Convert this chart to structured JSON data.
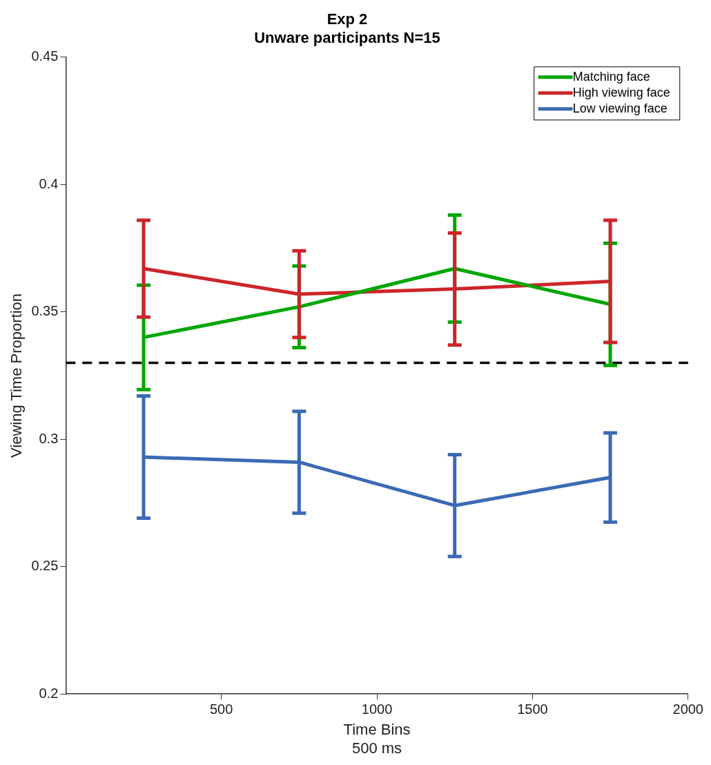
{
  "chart_data": {
    "type": "line",
    "title": "Exp 2",
    "subtitle": "Unware participants N=15",
    "xlabel": "Time Bins\n500 ms",
    "ylabel": "Viewing Time Proportion",
    "x": [
      250,
      750,
      1250,
      1750
    ],
    "xlim": [
      0,
      2000
    ],
    "xticks": [
      500,
      1000,
      1500,
      2000
    ],
    "ylim": [
      0.2,
      0.45
    ],
    "yticks": [
      0.2,
      0.25,
      0.3,
      0.35,
      0.4,
      0.45
    ],
    "series": [
      {
        "name": "Matching face",
        "color": "#00a600",
        "values": [
          0.34,
          0.352,
          0.367,
          0.353
        ],
        "errors": [
          0.0205,
          0.016,
          0.021,
          0.024
        ]
      },
      {
        "name": "High viewing face",
        "color": "#cc2529",
        "values": [
          0.367,
          0.357,
          0.359,
          0.362
        ],
        "errors": [
          0.019,
          0.017,
          0.022,
          0.024
        ]
      },
      {
        "name": "Low viewing face",
        "color": "#3b6ab3",
        "values": [
          0.293,
          0.291,
          0.274,
          0.285
        ],
        "errors": [
          0.024,
          0.02,
          0.02,
          0.0175
        ]
      }
    ],
    "ref_lines": [
      {
        "axis": "y",
        "value": 0.33,
        "color": "#000000",
        "line_style": "dashed"
      }
    ],
    "legend": "top right",
    "grid": false,
    "marker": "none",
    "line_style": "solid"
  }
}
